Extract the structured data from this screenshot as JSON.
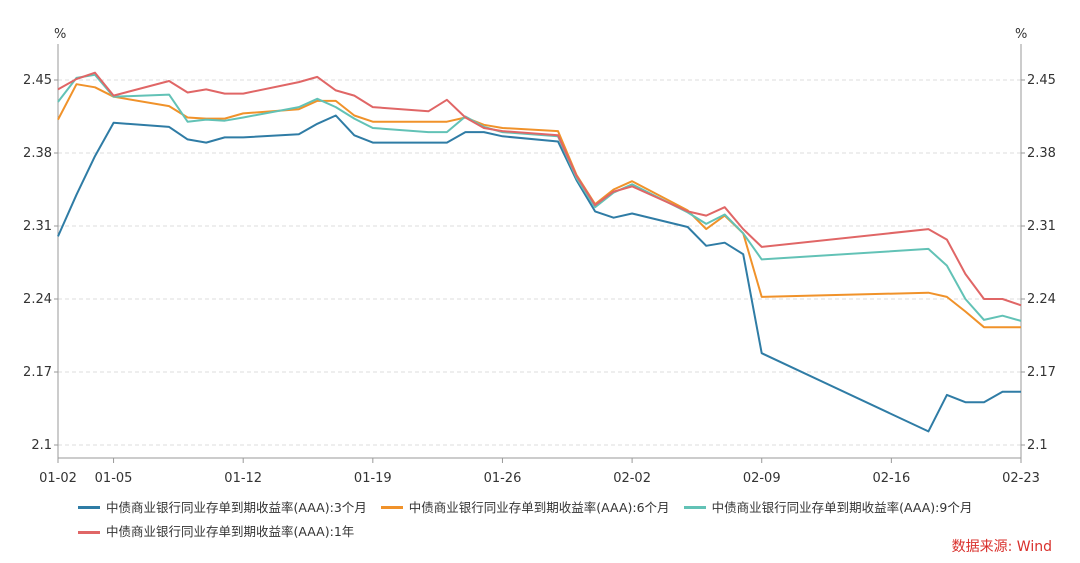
{
  "chart_data": {
    "type": "line",
    "title": "",
    "y_unit_left": "%",
    "y_unit_right": "%",
    "ylim": [
      2.1,
      2.45
    ],
    "yticks": [
      2.1,
      2.17,
      2.24,
      2.31,
      2.38,
      2.45
    ],
    "ytick_labels": [
      "2.1",
      "2.17",
      "2.24",
      "2.31",
      "2.38",
      "2.45"
    ],
    "xtick_labels": [
      "01-02",
      "01-05",
      "01-12",
      "01-19",
      "01-26",
      "02-02",
      "02-09",
      "02-16",
      "02-23"
    ],
    "dates": [
      "01-02",
      "01-03",
      "01-04",
      "01-05",
      "01-08",
      "01-09",
      "01-10",
      "01-11",
      "01-12",
      "01-15",
      "01-16",
      "01-17",
      "01-18",
      "01-19",
      "01-22",
      "01-23",
      "01-24",
      "01-25",
      "01-26",
      "01-29",
      "01-30",
      "01-31",
      "02-01",
      "02-02",
      "02-05",
      "02-06",
      "02-07",
      "02-08",
      "02-09",
      "02-18",
      "02-19",
      "02-20",
      "02-21",
      "02-22",
      "02-23"
    ],
    "series": [
      {
        "name": "中债商业银行同业存单到期收益率(AAA):3个月",
        "color": "#2f7ca5",
        "values": [
          2.3,
          2.34,
          2.377,
          2.409,
          2.405,
          2.393,
          2.39,
          2.395,
          2.395,
          2.398,
          2.408,
          2.416,
          2.397,
          2.39,
          2.39,
          2.39,
          2.4,
          2.4,
          2.396,
          2.391,
          2.354,
          2.324,
          2.318,
          2.322,
          2.309,
          2.291,
          2.294,
          2.283,
          2.188,
          2.113,
          2.148,
          2.141,
          2.141,
          2.151,
          2.151
        ]
      },
      {
        "name": "中债商业银行同业存单到期收益率(AAA):6个月",
        "color": "#f0922a",
        "values": [
          2.412,
          2.446,
          2.443,
          2.434,
          2.425,
          2.414,
          2.413,
          2.413,
          2.418,
          2.422,
          2.43,
          2.43,
          2.416,
          2.41,
          2.41,
          2.41,
          2.414,
          2.407,
          2.404,
          2.401,
          2.359,
          2.331,
          2.345,
          2.353,
          2.325,
          2.307,
          2.32,
          2.303,
          2.242,
          2.246,
          2.242,
          2.228,
          2.213,
          2.213,
          2.213
        ]
      },
      {
        "name": "中债商业银行同业存单到期收益率(AAA):9个月",
        "color": "#62c2b6",
        "values": [
          2.429,
          2.452,
          2.455,
          2.434,
          2.436,
          2.41,
          2.412,
          2.411,
          2.414,
          2.424,
          2.432,
          2.424,
          2.413,
          2.404,
          2.4,
          2.4,
          2.415,
          2.405,
          2.4,
          2.396,
          2.356,
          2.328,
          2.342,
          2.35,
          2.323,
          2.312,
          2.321,
          2.303,
          2.278,
          2.288,
          2.272,
          2.24,
          2.22,
          2.224,
          2.219
        ]
      },
      {
        "name": "中债商业银行同业存单到期收益率(AAA):1年",
        "color": "#e06666",
        "values": [
          2.441,
          2.451,
          2.457,
          2.435,
          2.449,
          2.438,
          2.441,
          2.437,
          2.437,
          2.448,
          2.453,
          2.44,
          2.435,
          2.424,
          2.42,
          2.431,
          2.414,
          2.404,
          2.401,
          2.397,
          2.358,
          2.33,
          2.343,
          2.348,
          2.324,
          2.32,
          2.328,
          2.307,
          2.29,
          2.307,
          2.297,
          2.264,
          2.24,
          2.24,
          2.234
        ]
      }
    ],
    "grid": true,
    "legend_position": "bottom-left",
    "source": "数据来源: Wind"
  }
}
